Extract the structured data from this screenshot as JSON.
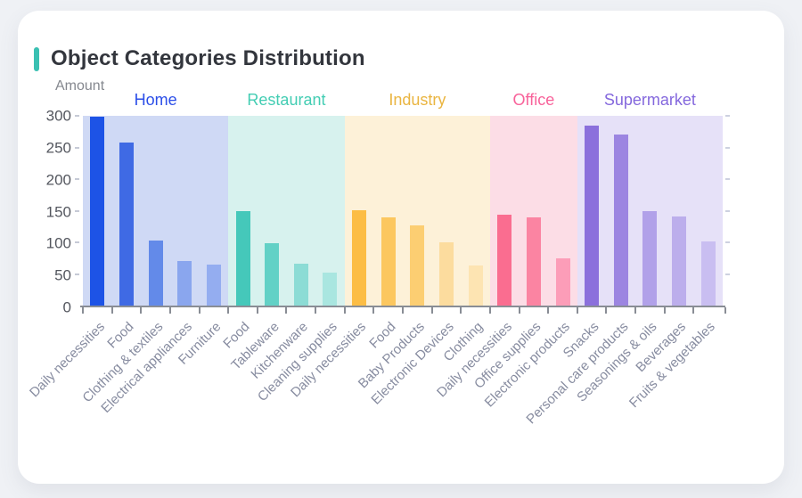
{
  "card": {
    "accent_color": "#3ac0b2"
  },
  "chart_data": {
    "type": "bar",
    "title": "Object Categories Distribution",
    "ylabel": "Amount",
    "ylim": [
      0,
      300
    ],
    "yticks": [
      0,
      50,
      100,
      150,
      200,
      250,
      300
    ],
    "grid": false,
    "legend_position": "group-headers-above-plot",
    "groups": [
      {
        "name": "Home",
        "label_color": "#2b4ee8",
        "band_color": "#cfd9f5",
        "categories": [
          "Daily necessities",
          "Food",
          "Clothing & textiles",
          "Electrical appliances",
          "Furniture"
        ],
        "values": [
          298,
          258,
          103,
          70,
          65
        ],
        "bar_colors": [
          "#1d53e6",
          "#3f6ae4",
          "#638ae9",
          "#8aa6ee",
          "#94adf0"
        ]
      },
      {
        "name": "Restaurant",
        "label_color": "#43cdb3",
        "band_color": "#d7f2ee",
        "categories": [
          "Food",
          "Tableware",
          "Kitchenware",
          "Cleaning supplies"
        ],
        "values": [
          149,
          98,
          66,
          52
        ],
        "bar_colors": [
          "#45c8ba",
          "#62d1c6",
          "#8cdcd5",
          "#a9e6e0"
        ]
      },
      {
        "name": "Industry",
        "label_color": "#eab541",
        "band_color": "#fdf1d8",
        "categories": [
          "Daily necessities",
          "Food",
          "Baby Products",
          "Electronic Devices",
          "Clothing"
        ],
        "values": [
          151,
          139,
          127,
          100,
          63
        ],
        "bar_colors": [
          "#fcbd45",
          "#fcc75f",
          "#fcce72",
          "#fcdc9e",
          "#fde4b2"
        ]
      },
      {
        "name": "Office",
        "label_color": "#f8629a",
        "band_color": "#fcdde6",
        "categories": [
          "Daily necessities",
          "Office supplies",
          "Electronic products"
        ],
        "values": [
          143,
          139,
          75
        ],
        "bar_colors": [
          "#fa6d90",
          "#fb84a2",
          "#fc9db8"
        ]
      },
      {
        "name": "Supermarket",
        "label_color": "#8468dd",
        "band_color": "#e6e1f8",
        "categories": [
          "Snacks",
          "Personal care products",
          "Seasonings & oils",
          "Beverages",
          "Fruits & vegetables"
        ],
        "values": [
          285,
          271,
          149,
          141,
          102
        ],
        "bar_colors": [
          "#8b70dc",
          "#9c85e1",
          "#b1a1e9",
          "#bcaeec",
          "#c9bef1"
        ]
      }
    ]
  }
}
